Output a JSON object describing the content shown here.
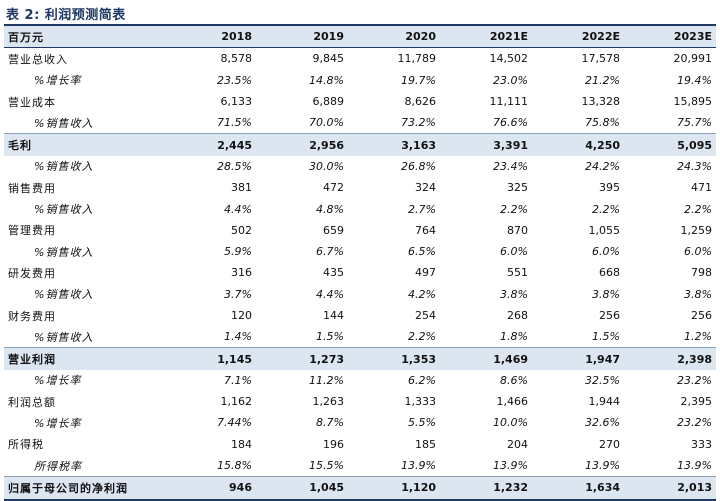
{
  "title": "表 2: 利润预测简表",
  "header": [
    "百万元",
    "2018",
    "2019",
    "2020",
    "2021E",
    "2022E",
    "2023E"
  ],
  "rows": [
    {
      "label": "营业总收入",
      "values": [
        "8,578",
        "9,845",
        "11,789",
        "14,502",
        "17,578",
        "20,991"
      ],
      "style": "normal"
    },
    {
      "label": "%增长率",
      "values": [
        "23.5%",
        "14.8%",
        "19.7%",
        "23.0%",
        "21.2%",
        "19.4%"
      ],
      "style": "sub"
    },
    {
      "label": "营业成本",
      "values": [
        "6,133",
        "6,889",
        "8,626",
        "11,111",
        "13,328",
        "15,895"
      ],
      "style": "normal"
    },
    {
      "label": "%销售收入",
      "values": [
        "71.5%",
        "70.0%",
        "73.2%",
        "76.6%",
        "75.8%",
        "75.7%"
      ],
      "style": "sub"
    },
    {
      "label": "毛利",
      "values": [
        "2,445",
        "2,956",
        "3,163",
        "3,391",
        "4,250",
        "5,095"
      ],
      "style": "bold"
    },
    {
      "label": "%销售收入",
      "values": [
        "28.5%",
        "30.0%",
        "26.8%",
        "23.4%",
        "24.2%",
        "24.3%"
      ],
      "style": "sub"
    },
    {
      "label": "销售费用",
      "values": [
        "381",
        "472",
        "324",
        "325",
        "395",
        "471"
      ],
      "style": "normal"
    },
    {
      "label": "%销售收入",
      "values": [
        "4.4%",
        "4.8%",
        "2.7%",
        "2.2%",
        "2.2%",
        "2.2%"
      ],
      "style": "sub"
    },
    {
      "label": "管理费用",
      "values": [
        "502",
        "659",
        "764",
        "870",
        "1,055",
        "1,259"
      ],
      "style": "normal"
    },
    {
      "label": "%销售收入",
      "values": [
        "5.9%",
        "6.7%",
        "6.5%",
        "6.0%",
        "6.0%",
        "6.0%"
      ],
      "style": "sub"
    },
    {
      "label": "研发费用",
      "values": [
        "316",
        "435",
        "497",
        "551",
        "668",
        "798"
      ],
      "style": "normal"
    },
    {
      "label": "%销售收入",
      "values": [
        "3.7%",
        "4.4%",
        "4.2%",
        "3.8%",
        "3.8%",
        "3.8%"
      ],
      "style": "sub"
    },
    {
      "label": "财务费用",
      "values": [
        "120",
        "144",
        "254",
        "268",
        "256",
        "256"
      ],
      "style": "normal"
    },
    {
      "label": "%销售收入",
      "values": [
        "1.4%",
        "1.5%",
        "2.2%",
        "1.8%",
        "1.5%",
        "1.2%"
      ],
      "style": "sub"
    },
    {
      "label": "营业利润",
      "values": [
        "1,145",
        "1,273",
        "1,353",
        "1,469",
        "1,947",
        "2,398"
      ],
      "style": "bold"
    },
    {
      "label": "%增长率",
      "values": [
        "7.1%",
        "11.2%",
        "6.2%",
        "8.6%",
        "32.5%",
        "23.2%"
      ],
      "style": "sub"
    },
    {
      "label": "利润总额",
      "values": [
        "1,162",
        "1,263",
        "1,333",
        "1,466",
        "1,944",
        "2,395"
      ],
      "style": "normal"
    },
    {
      "label": "%增长率",
      "values": [
        "7.44%",
        "8.7%",
        "5.5%",
        "10.0%",
        "32.6%",
        "23.2%"
      ],
      "style": "sub"
    },
    {
      "label": "所得税",
      "values": [
        "184",
        "196",
        "185",
        "204",
        "270",
        "333"
      ],
      "style": "normal"
    },
    {
      "label": "所得税率",
      "values": [
        "15.8%",
        "15.5%",
        "13.9%",
        "13.9%",
        "13.9%",
        "13.9%"
      ],
      "style": "sub"
    },
    {
      "label": "归属于母公司的净利润",
      "values": [
        "946",
        "1,045",
        "1,120",
        "1,232",
        "1,634",
        "2,013"
      ],
      "style": "bold-last"
    }
  ]
}
